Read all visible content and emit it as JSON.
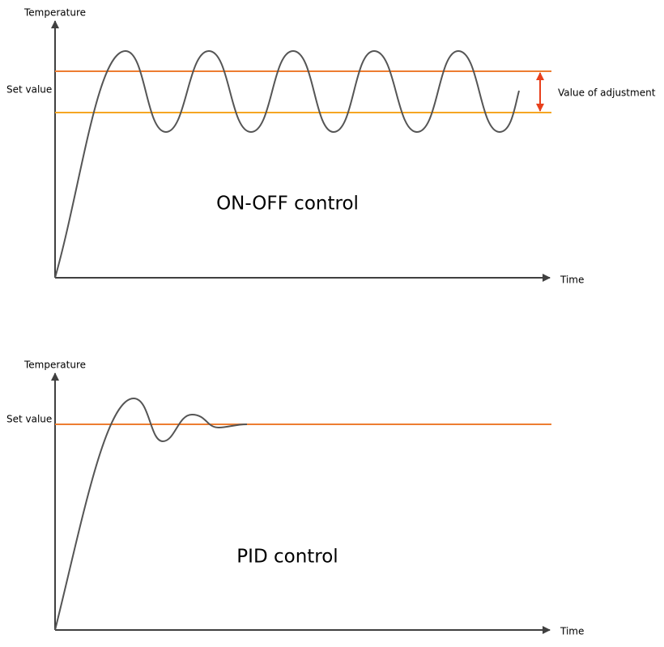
{
  "diagrams": [
    {
      "title": "ON-OFF control",
      "y_axis_label": "Temperature",
      "x_axis_label": "Time",
      "set_value_label": "Set value",
      "adjustment_label": "Value of adjustment"
    },
    {
      "title": "PID control",
      "y_axis_label": "Temperature",
      "x_axis_label": "Time",
      "set_value_label": "Set value"
    }
  ]
}
